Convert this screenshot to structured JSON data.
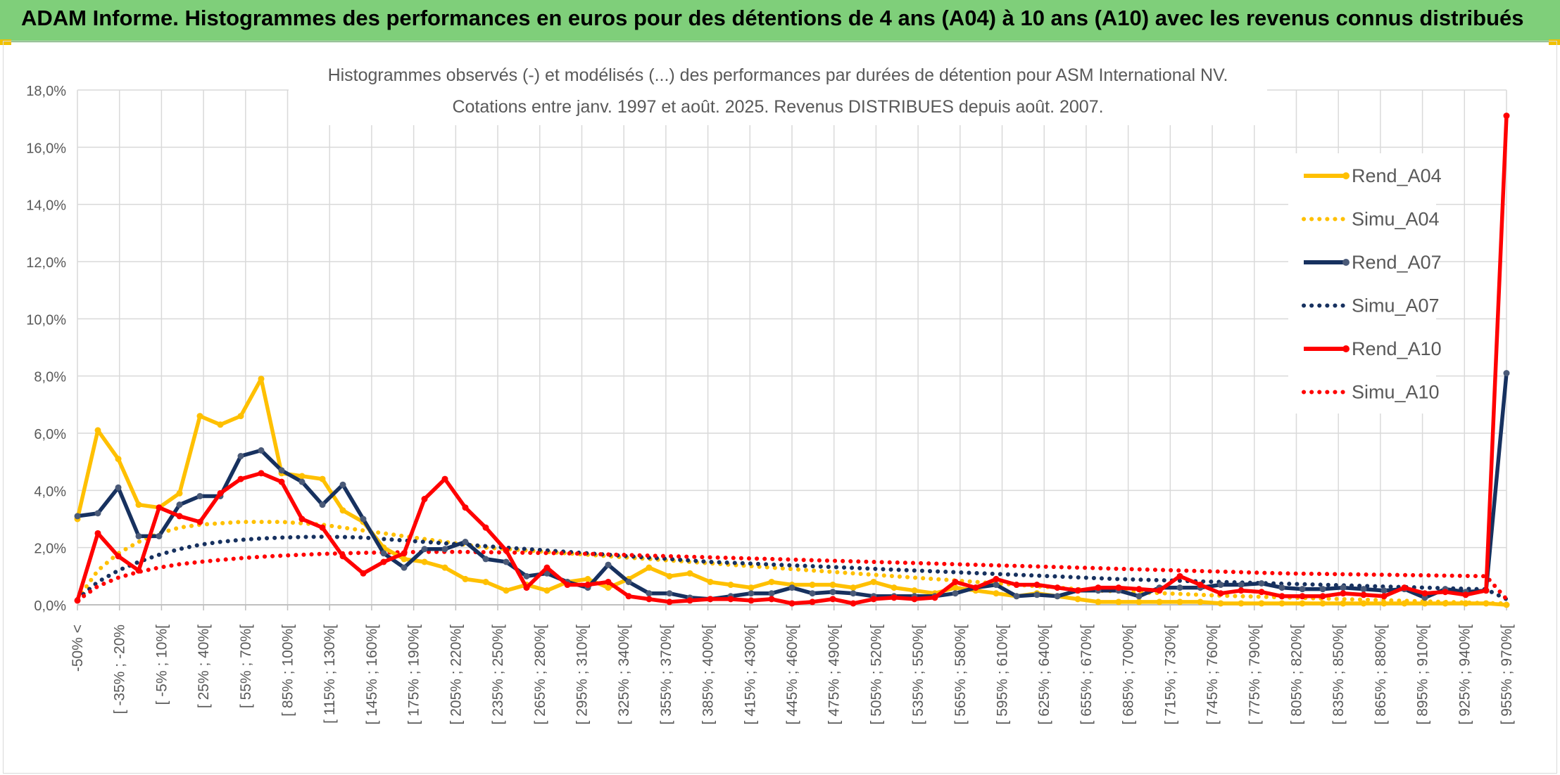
{
  "banner": {
    "title": "ADAM Informe. Histogrammes des performances en euros pour des détentions de 4 ans (A04) à 10 ans (A10) avec les revenus connus distribués"
  },
  "chart_data": {
    "type": "line",
    "title_line1": "Histogrammes observés (-) et modélisés (...) des performances par durées de détention pour ASM International NV.",
    "title_line2": "Cotations entre janv. 1997 et août. 2025. Revenus DISTRIBUES depuis août. 2007.",
    "ylim": [
      0,
      18
    ],
    "y_ticks": [
      "0,0%",
      "2,0%",
      "4,0%",
      "6,0%",
      "8,0%",
      "10,0%",
      "12,0%",
      "14,0%",
      "16,0%",
      "18,0%"
    ],
    "x_tick_labels": [
      "-50% <",
      "[ -35% ; -20%",
      "[ -5% ; 10%[",
      "[ 25% ; 40%[",
      "[ 55% ; 70%[",
      "[ 85% ; 100%[",
      "[ 115% ; 130%[",
      "[ 145% ; 160%[",
      "[ 175% ; 190%[",
      "[ 205% ; 220%[",
      "[ 235% ; 250%[",
      "[ 265% ; 280%[",
      "[ 295% ; 310%[",
      "[ 325% ; 340%[",
      "[ 355% ; 370%[",
      "[ 385% ; 400%[",
      "[ 415% ; 430%[",
      "[ 445% ; 460%[",
      "[ 475% ; 490%[",
      "[ 505% ; 520%[",
      "[ 535% ; 550%[",
      "[ 565% ; 580%[",
      "[ 595% ; 610%[",
      "[ 625% ; 640%[",
      "[ 655% ; 670%[",
      "[ 685% ; 700%[",
      "[ 715% ; 730%[",
      "[ 745% ; 760%[",
      "[ 775% ; 790%[",
      "[ 805% ; 820%[",
      "[ 835% ; 850%[",
      "[ 865% ; 880%[",
      "[ 895% ; 910%[",
      "[ 925% ; 940%[",
      "[ 955% ; 970%["
    ],
    "legend_position": "right",
    "series": [
      {
        "name": "Rend_A04",
        "style": "solid",
        "color": "#ffc000",
        "values": [
          3.0,
          6.1,
          5.1,
          3.5,
          3.4,
          3.9,
          6.6,
          6.3,
          6.6,
          7.9,
          4.6,
          4.5,
          4.4,
          3.3,
          2.9,
          2.0,
          1.6,
          1.5,
          1.3,
          0.9,
          0.8,
          0.5,
          0.7,
          0.5,
          0.8,
          0.9,
          0.6,
          0.9,
          1.3,
          1.0,
          1.1,
          0.8,
          0.7,
          0.6,
          0.8,
          0.7,
          0.7,
          0.7,
          0.6,
          0.8,
          0.6,
          0.5,
          0.4,
          0.6,
          0.5,
          0.4,
          0.3,
          0.4,
          0.3,
          0.2,
          0.1,
          0.1,
          0.1,
          0.1,
          0.1,
          0.1,
          0.05,
          0.05,
          0.05,
          0.05,
          0.05,
          0.05,
          0.05,
          0.05,
          0.05,
          0.05,
          0.05,
          0.05,
          0.05,
          0.05,
          0.0
        ]
      },
      {
        "name": "Simu_A04",
        "style": "dotted",
        "color": "#ffc000",
        "values": [
          0.2,
          1.2,
          1.8,
          2.2,
          2.5,
          2.7,
          2.8,
          2.85,
          2.9,
          2.9,
          2.9,
          2.85,
          2.8,
          2.7,
          2.6,
          2.5,
          2.4,
          2.3,
          2.2,
          2.1,
          2.0,
          1.95,
          1.9,
          1.85,
          1.8,
          1.75,
          1.7,
          1.65,
          1.6,
          1.55,
          1.5,
          1.45,
          1.4,
          1.35,
          1.3,
          1.25,
          1.2,
          1.15,
          1.1,
          1.05,
          1.0,
          0.95,
          0.9,
          0.85,
          0.8,
          0.75,
          0.7,
          0.65,
          0.6,
          0.55,
          0.5,
          0.47,
          0.44,
          0.41,
          0.38,
          0.35,
          0.32,
          0.3,
          0.28,
          0.26,
          0.24,
          0.22,
          0.2,
          0.18,
          0.16,
          0.14,
          0.12,
          0.1,
          0.08,
          0.06,
          0.05
        ]
      },
      {
        "name": "Rend_A07",
        "style": "solid",
        "color": "#17315f",
        "values": [
          3.1,
          3.2,
          4.1,
          2.4,
          2.4,
          3.5,
          3.8,
          3.8,
          5.2,
          5.4,
          4.7,
          4.3,
          3.5,
          4.2,
          3.0,
          1.8,
          1.3,
          1.95,
          1.95,
          2.2,
          1.6,
          1.5,
          1.0,
          1.1,
          0.8,
          0.6,
          1.4,
          0.8,
          0.4,
          0.4,
          0.25,
          0.2,
          0.3,
          0.4,
          0.4,
          0.6,
          0.4,
          0.45,
          0.4,
          0.3,
          0.3,
          0.3,
          0.3,
          0.4,
          0.6,
          0.7,
          0.3,
          0.35,
          0.3,
          0.5,
          0.5,
          0.5,
          0.3,
          0.6,
          0.6,
          0.6,
          0.7,
          0.7,
          0.75,
          0.6,
          0.55,
          0.55,
          0.6,
          0.55,
          0.5,
          0.55,
          0.25,
          0.55,
          0.45,
          0.5,
          8.1
        ]
      },
      {
        "name": "Simu_A07",
        "style": "dotted",
        "color": "#17315f",
        "values": [
          0.2,
          0.8,
          1.2,
          1.5,
          1.75,
          1.95,
          2.1,
          2.2,
          2.27,
          2.32,
          2.35,
          2.37,
          2.38,
          2.37,
          2.35,
          2.3,
          2.25,
          2.2,
          2.15,
          2.1,
          2.05,
          2.0,
          1.95,
          1.9,
          1.85,
          1.8,
          1.75,
          1.7,
          1.65,
          1.6,
          1.55,
          1.5,
          1.47,
          1.44,
          1.41,
          1.38,
          1.35,
          1.32,
          1.29,
          1.26,
          1.23,
          1.2,
          1.17,
          1.14,
          1.11,
          1.08,
          1.05,
          1.02,
          0.99,
          0.96,
          0.93,
          0.9,
          0.88,
          0.86,
          0.84,
          0.82,
          0.8,
          0.78,
          0.76,
          0.74,
          0.72,
          0.7,
          0.68,
          0.66,
          0.64,
          0.62,
          0.6,
          0.58,
          0.56,
          0.54,
          0.2
        ]
      },
      {
        "name": "Rend_A10",
        "style": "solid",
        "color": "#ff0000",
        "values": [
          0.15,
          2.5,
          1.7,
          1.2,
          3.4,
          3.1,
          2.9,
          3.9,
          4.4,
          4.6,
          4.3,
          3.0,
          2.7,
          1.7,
          1.1,
          1.5,
          1.8,
          3.7,
          4.4,
          3.4,
          2.7,
          1.9,
          0.6,
          1.3,
          0.7,
          0.7,
          0.8,
          0.3,
          0.2,
          0.1,
          0.15,
          0.2,
          0.2,
          0.15,
          0.2,
          0.05,
          0.1,
          0.2,
          0.05,
          0.2,
          0.25,
          0.2,
          0.25,
          0.8,
          0.6,
          0.9,
          0.7,
          0.7,
          0.6,
          0.5,
          0.6,
          0.6,
          0.55,
          0.5,
          1.0,
          0.7,
          0.4,
          0.5,
          0.45,
          0.3,
          0.3,
          0.3,
          0.4,
          0.35,
          0.3,
          0.6,
          0.4,
          0.45,
          0.35,
          0.5,
          17.1
        ]
      },
      {
        "name": "Simu_A10",
        "style": "dotted",
        "color": "#ff0000",
        "values": [
          0.15,
          0.65,
          0.95,
          1.15,
          1.3,
          1.42,
          1.5,
          1.57,
          1.63,
          1.68,
          1.72,
          1.75,
          1.78,
          1.8,
          1.82,
          1.83,
          1.84,
          1.85,
          1.85,
          1.85,
          1.84,
          1.83,
          1.82,
          1.81,
          1.8,
          1.78,
          1.76,
          1.74,
          1.72,
          1.7,
          1.68,
          1.66,
          1.64,
          1.62,
          1.6,
          1.58,
          1.56,
          1.54,
          1.52,
          1.5,
          1.48,
          1.46,
          1.44,
          1.42,
          1.4,
          1.38,
          1.36,
          1.34,
          1.32,
          1.3,
          1.28,
          1.26,
          1.24,
          1.22,
          1.2,
          1.18,
          1.16,
          1.14,
          1.12,
          1.1,
          1.09,
          1.08,
          1.07,
          1.06,
          1.05,
          1.04,
          1.03,
          1.02,
          1.01,
          1.0,
          0.2
        ]
      }
    ]
  }
}
